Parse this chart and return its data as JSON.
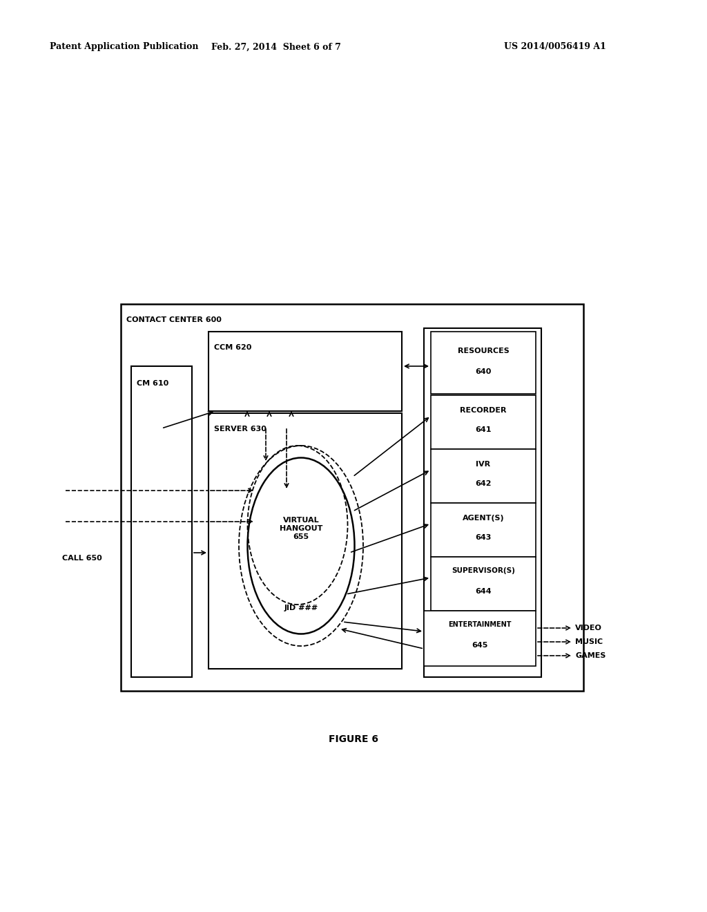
{
  "header_left": "Patent Application Publication",
  "header_mid": "Feb. 27, 2014  Sheet 6 of 7",
  "header_right": "US 2014/0056419 A1",
  "figure_label": "FIGURE 6",
  "bg_color": "#ffffff"
}
